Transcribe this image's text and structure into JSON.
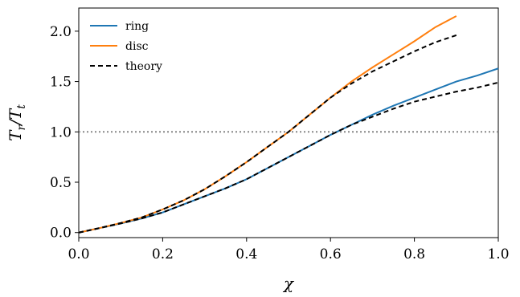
{
  "chart_data": {
    "type": "line",
    "xlabel": "χ",
    "ylabel": "T_r / T_t",
    "xlim": [
      0.0,
      1.0
    ],
    "ylim": [
      -0.05,
      2.23
    ],
    "xticks": [
      0.0,
      0.2,
      0.4,
      0.6,
      0.8,
      1.0
    ],
    "yticks": [
      0.0,
      0.5,
      1.0,
      1.5,
      2.0
    ],
    "xtick_labels": [
      "0.0",
      "0.2",
      "0.4",
      "0.6",
      "0.8",
      "1.0"
    ],
    "ytick_labels": [
      "0.0",
      "0.5",
      "1.0",
      "1.5",
      "2.0"
    ],
    "grid": false,
    "legend_position": "top-left",
    "reference_line": {
      "y": 1.0,
      "style": "dotted",
      "color": "#888888"
    },
    "series": [
      {
        "name": "ring",
        "color": "#1f77b4",
        "style": "solid",
        "x": [
          0.0,
          0.05,
          0.1,
          0.15,
          0.2,
          0.25,
          0.3,
          0.35,
          0.4,
          0.45,
          0.5,
          0.55,
          0.6,
          0.65,
          0.7,
          0.75,
          0.8,
          0.85,
          0.9,
          0.95,
          1.0
        ],
        "y": [
          0.0,
          0.045,
          0.09,
          0.14,
          0.2,
          0.28,
          0.36,
          0.44,
          0.53,
          0.64,
          0.75,
          0.86,
          0.97,
          1.07,
          1.17,
          1.26,
          1.34,
          1.42,
          1.5,
          1.56,
          1.63
        ]
      },
      {
        "name": "disc",
        "color": "#ff7f0e",
        "style": "solid",
        "x": [
          0.0,
          0.05,
          0.1,
          0.15,
          0.2,
          0.25,
          0.3,
          0.35,
          0.4,
          0.45,
          0.5,
          0.55,
          0.6,
          0.65,
          0.7,
          0.75,
          0.8,
          0.85,
          0.9
        ],
        "y": [
          0.0,
          0.045,
          0.095,
          0.15,
          0.23,
          0.32,
          0.43,
          0.56,
          0.7,
          0.85,
          1.0,
          1.17,
          1.34,
          1.5,
          1.64,
          1.77,
          1.9,
          2.04,
          2.15
        ]
      },
      {
        "name": "theory",
        "color": "#000000",
        "style": "dashed",
        "x": [
          0.0,
          0.05,
          0.1,
          0.15,
          0.2,
          0.25,
          0.3,
          0.35,
          0.4,
          0.45,
          0.5,
          0.55,
          0.6,
          0.65,
          0.7,
          0.75,
          0.8,
          0.85,
          0.9
        ],
        "y": [
          0.0,
          0.045,
          0.095,
          0.15,
          0.23,
          0.32,
          0.43,
          0.56,
          0.7,
          0.85,
          1.0,
          1.17,
          1.34,
          1.48,
          1.6,
          1.7,
          1.8,
          1.89,
          1.96
        ]
      },
      {
        "name": "theory-ring",
        "color": "#000000",
        "style": "dashed",
        "x": [
          0.0,
          0.05,
          0.1,
          0.15,
          0.2,
          0.25,
          0.3,
          0.35,
          0.4,
          0.45,
          0.5,
          0.55,
          0.6,
          0.65,
          0.7,
          0.75,
          0.8,
          0.85,
          0.9,
          0.95,
          1.0
        ],
        "y": [
          0.0,
          0.045,
          0.09,
          0.14,
          0.2,
          0.28,
          0.36,
          0.44,
          0.53,
          0.64,
          0.75,
          0.86,
          0.97,
          1.07,
          1.15,
          1.23,
          1.3,
          1.35,
          1.4,
          1.44,
          1.49
        ]
      }
    ],
    "legend": [
      {
        "label": "ring",
        "color": "#1f77b4",
        "style": "solid"
      },
      {
        "label": "disc",
        "color": "#ff7f0e",
        "style": "solid"
      },
      {
        "label": "theory",
        "color": "#000000",
        "style": "dashed"
      }
    ]
  }
}
